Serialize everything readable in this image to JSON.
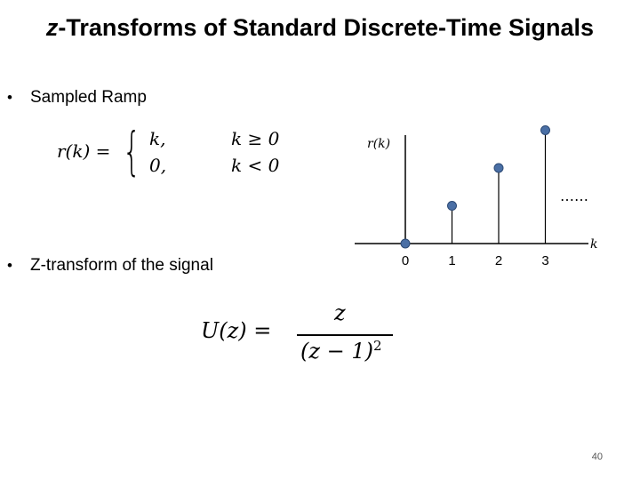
{
  "slide": {
    "title_italic": "z",
    "title_rest": "-Transforms of Standard Discrete-Time Signals",
    "bullets": [
      "Sampled Ramp",
      "Z-transform of the signal"
    ],
    "page_number": "40"
  },
  "piecewise": {
    "lhs": "r(k) =",
    "case1_value": "k,",
    "case1_condition": "k ≥ 0",
    "case2_value": "0,",
    "case2_condition": "k < 0"
  },
  "ztransform": {
    "lhs": "U(z) =",
    "numerator": "z",
    "denominator": "(z − 1)",
    "exponent": "2"
  },
  "chart_data": {
    "type": "scatter",
    "style": "stem",
    "ylabel": "r(k)",
    "xlabel": "k",
    "x": [
      0,
      1,
      2,
      3
    ],
    "y": [
      0,
      1,
      2,
      3
    ],
    "tick_labels": [
      "0",
      "1",
      "2",
      "3"
    ],
    "continuation": "……",
    "marker_color": "#4a6fa5",
    "grid": false
  }
}
